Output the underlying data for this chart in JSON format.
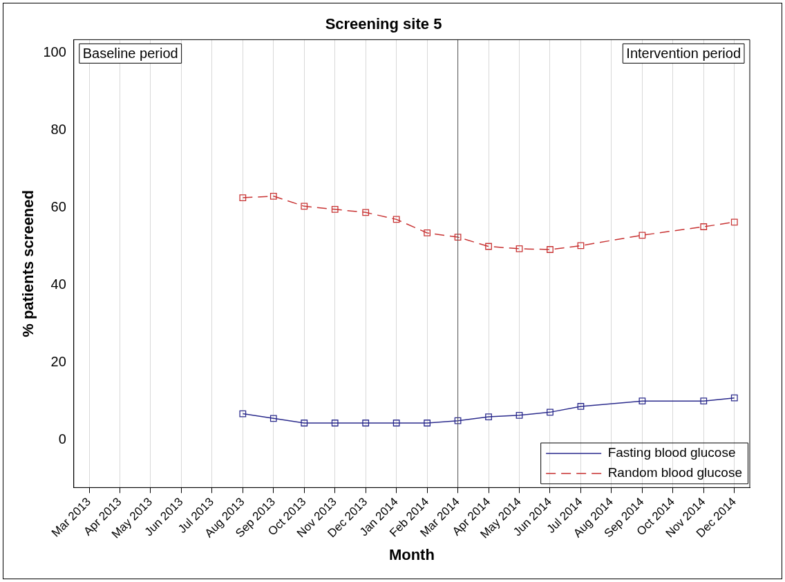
{
  "chart_data": {
    "type": "line",
    "title": "Screening site 5",
    "xlabel": "Month",
    "ylabel": "% patients screened",
    "categories": [
      "Mar 2013",
      "Apr 2013",
      "May 2013",
      "Jun 2013",
      "Jul 2013",
      "Aug 2013",
      "Sep 2013",
      "Oct 2013",
      "Nov 2013",
      "Dec 2013",
      "Jan 2014",
      "Feb 2014",
      "Mar 2014",
      "Apr 2014",
      "May 2014",
      "Jun 2014",
      "Jul 2014",
      "Aug 2014",
      "Sep 2014",
      "Oct 2014",
      "Nov 2014",
      "Dec 2014"
    ],
    "series": [
      {
        "name": "Fasting blood glucose",
        "color": "#2a2a8c",
        "line_style": "solid",
        "values": [
          null,
          null,
          null,
          null,
          null,
          6.7,
          5.5,
          4.3,
          4.3,
          4.3,
          4.3,
          4.3,
          4.9,
          5.9,
          6.3,
          7.1,
          8.6,
          null,
          10,
          null,
          10,
          10.8
        ]
      },
      {
        "name": "Random blood glucose",
        "color": "#c83232",
        "line_style": "dashed",
        "values": [
          null,
          null,
          null,
          null,
          null,
          62.6,
          63,
          60.4,
          59.6,
          58.8,
          57,
          53.5,
          52.4,
          50,
          49.4,
          49.2,
          50.2,
          null,
          52.9,
          null,
          55.1,
          56.3
        ]
      }
    ],
    "ylim": [
      -12.4,
      103.5
    ],
    "yticks": [
      0,
      20,
      40,
      60,
      80,
      100
    ],
    "grid": "x",
    "legend": "bottom right",
    "marker": "square",
    "ref_lines": [
      {
        "axis": "x",
        "value": "Mar 2014",
        "color": "#555555"
      }
    ],
    "annotations": [
      "Baseline period",
      "Intervention period"
    ]
  }
}
